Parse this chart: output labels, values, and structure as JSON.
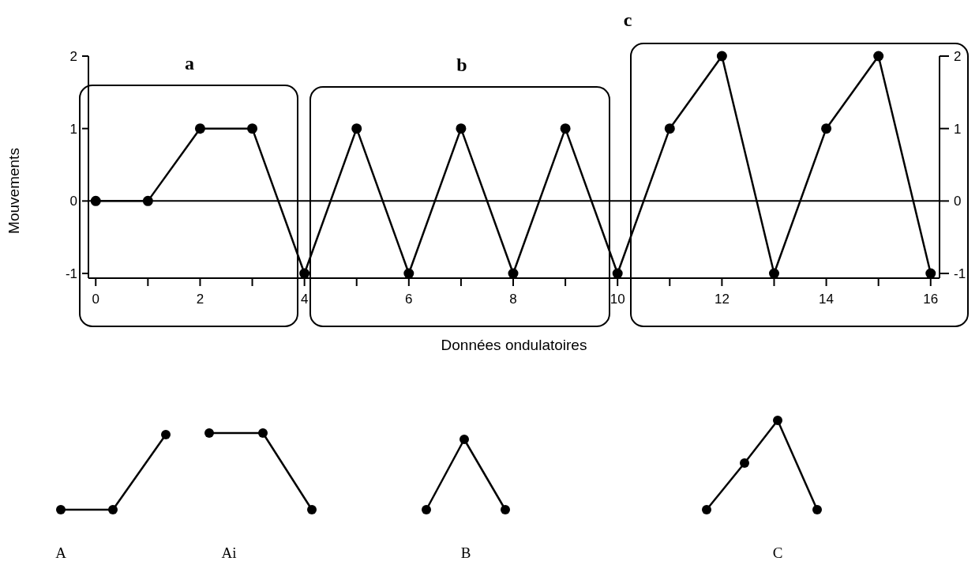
{
  "chart_data": {
    "type": "line",
    "xlabel": "Données ondulatoires",
    "ylabel": "Mouvements",
    "x": [
      0,
      1,
      2,
      3,
      4,
      5,
      6,
      7,
      8,
      9,
      10,
      11,
      12,
      13,
      14,
      15,
      16
    ],
    "series": [
      {
        "color": "#000000",
        "values": [
          0,
          0,
          1,
          1,
          -1,
          1,
          -1,
          1,
          -1,
          1,
          -1,
          1,
          2,
          -1,
          1,
          2,
          -1
        ]
      }
    ],
    "marker": "circle",
    "xlim": [
      -0.14,
      16.17
    ],
    "xticks": [
      0,
      {
        "value": 1,
        "label": null
      },
      2,
      {
        "value": 3,
        "label": null
      },
      4,
      {
        "value": 5,
        "label": null
      },
      6,
      {
        "value": 7,
        "label": null
      },
      8,
      {
        "value": 9,
        "label": null
      },
      10,
      {
        "value": 11,
        "label": null
      },
      12,
      {
        "value": 13,
        "label": null
      },
      14,
      {
        "value": 15,
        "label": null
      },
      16
    ],
    "ylim": [
      -1.065,
      2
    ],
    "yticks": [
      -1,
      0,
      1,
      2
    ],
    "y2lim": [
      -1.065,
      2
    ],
    "y2ticks": [
      -1,
      0,
      1,
      2
    ],
    "ref_lines": [
      {
        "axis": "y",
        "value": 0,
        "label": null
      }
    ],
    "annotations": [
      "a",
      "b",
      "c",
      "A",
      "Ai",
      "B",
      "C"
    ]
  }
}
